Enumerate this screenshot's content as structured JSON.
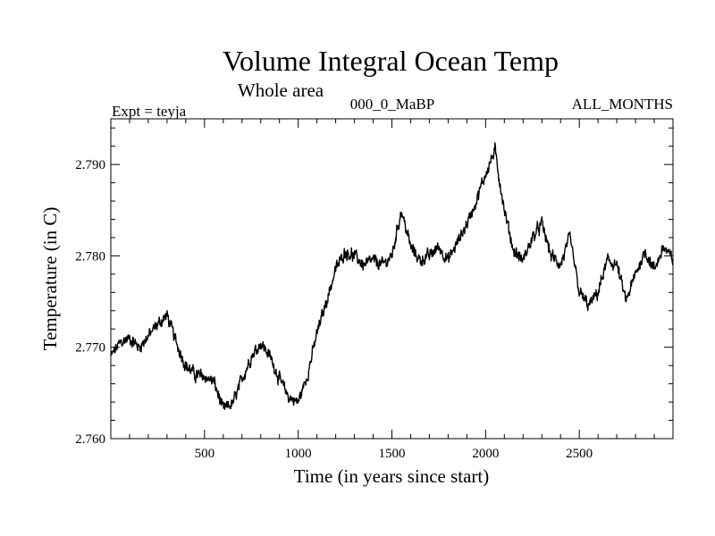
{
  "chart_data": {
    "type": "line",
    "title": "Volume Integral Ocean Temp",
    "subtitle": "Whole area",
    "expt_label": "Expt = teyja",
    "run_label": "000_0_MaBP",
    "months_label": "ALL_MONTHS",
    "xlabel": "Time (in years since start)",
    "ylabel": "Temperature (in C)",
    "xlim": [
      0,
      3000
    ],
    "ylim": [
      2.76,
      2.795
    ],
    "x_ticks": [
      500,
      1000,
      1500,
      2000,
      2500
    ],
    "x_tick_labels": [
      "500",
      "1000",
      "1500",
      "2000",
      "2500"
    ],
    "y_ticks": [
      2.76,
      2.77,
      2.78,
      2.79
    ],
    "y_tick_labels": [
      "2.760",
      "2.770",
      "2.780",
      "2.790"
    ],
    "grid": false,
    "series": [
      {
        "name": "Volume Integral Ocean Temp",
        "x": [
          0,
          50,
          100,
          150,
          200,
          250,
          300,
          350,
          400,
          450,
          500,
          550,
          600,
          650,
          700,
          750,
          800,
          850,
          900,
          950,
          1000,
          1050,
          1100,
          1150,
          1200,
          1250,
          1300,
          1350,
          1400,
          1450,
          1500,
          1550,
          1600,
          1650,
          1700,
          1750,
          1800,
          1850,
          1900,
          1950,
          2000,
          2050,
          2100,
          2150,
          2200,
          2250,
          2300,
          2350,
          2400,
          2450,
          2500,
          2550,
          2600,
          2650,
          2700,
          2750,
          2800,
          2850,
          2900,
          2950,
          3000
        ],
        "values": [
          2.769,
          2.7705,
          2.771,
          2.77,
          2.7712,
          2.7725,
          2.7735,
          2.7705,
          2.768,
          2.767,
          2.7668,
          2.7662,
          2.7632,
          2.7638,
          2.7665,
          2.769,
          2.7705,
          2.769,
          2.7665,
          2.7645,
          2.764,
          2.767,
          2.7715,
          2.775,
          2.7785,
          2.7805,
          2.78,
          2.779,
          2.7795,
          2.779,
          2.78,
          2.785,
          2.781,
          2.7795,
          2.78,
          2.781,
          2.7795,
          2.7815,
          2.7835,
          2.786,
          2.789,
          2.7915,
          2.785,
          2.7805,
          2.7795,
          2.782,
          2.7835,
          2.78,
          2.779,
          2.782,
          2.776,
          2.7745,
          2.776,
          2.7795,
          2.779,
          2.775,
          2.778,
          2.7805,
          2.7785,
          2.781,
          2.7795
        ]
      }
    ]
  }
}
